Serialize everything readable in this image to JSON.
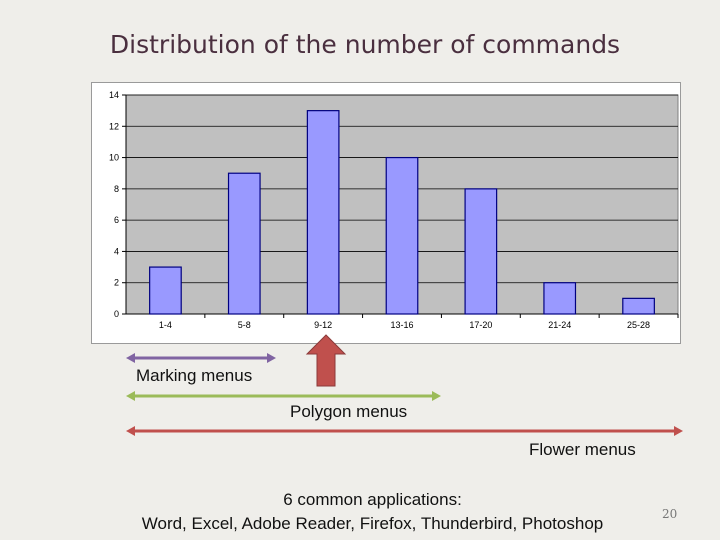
{
  "slide": {
    "title": "Distribution of the number of commands",
    "page_number": "20",
    "footer_line1": "6 common applications:",
    "footer_line2": "Word, Excel, Adobe Reader, Firefox, Thunderbird, Photoshop"
  },
  "ranges": {
    "marking": "Marking menus",
    "polygon": "Polygon menus",
    "flower": "Flower menus"
  },
  "colors": {
    "plot_bg": "#c0c0c0",
    "bar_fill": "#9999ff",
    "bar_stroke": "#000080",
    "marking": "#8064a2",
    "polygon": "#9bbb59",
    "flower": "#c0504d",
    "pointer": "#c0504d"
  },
  "chart_data": {
    "type": "bar",
    "categories": [
      "1-4",
      "5-8",
      "9-12",
      "13-16",
      "17-20",
      "21-24",
      "25-28"
    ],
    "values": [
      3,
      9,
      13,
      10,
      8,
      2,
      1
    ],
    "yticks": [
      0,
      2,
      4,
      6,
      8,
      10,
      12,
      14
    ],
    "ylim": [
      0,
      14
    ],
    "title": "",
    "xlabel": "",
    "ylabel": "",
    "grid": true,
    "legend": "none"
  }
}
